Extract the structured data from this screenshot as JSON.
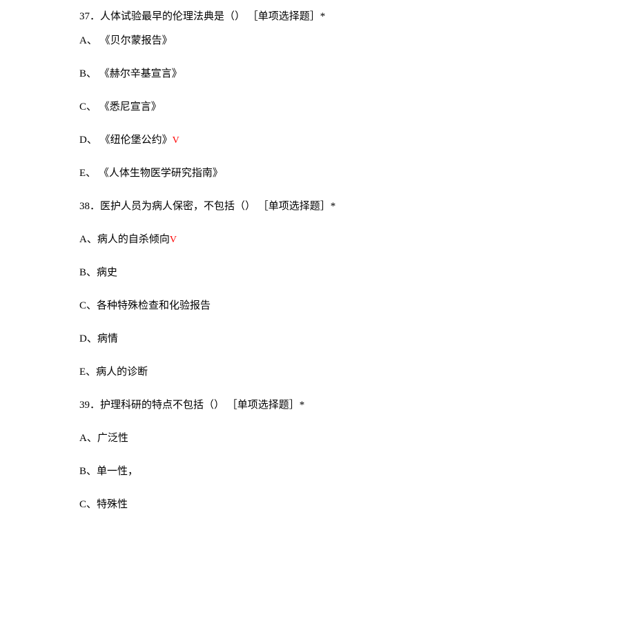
{
  "q37": {
    "stem": "37．人体试验最早的伦理法典是（） ［单项选择题］*",
    "options": {
      "A": "A、 《贝尔蒙报告》",
      "B": "B、 《赫尔辛基宣言》",
      "C": "C、 《悉尼宣言》",
      "D_text": "D、 《纽伦堡公约》",
      "D_mark": "V",
      "E": "E、 《人体生物医学研究指南》"
    }
  },
  "q38": {
    "stem": "38．医护人员为病人保密，不包括（） ［单项选择题］*",
    "options": {
      "A_text": "A、病人的自杀倾向",
      "A_mark": "V",
      "B": "B、病史",
      "C": "C、各种特殊检查和化验报告",
      "D": "D、病情",
      "E": "E、病人的诊断"
    }
  },
  "q39": {
    "stem": "39．护理科研的特点不包括（） ［单项选择题］*",
    "options": {
      "A": "A、广泛性",
      "B": "B、单一性，",
      "C": "C、特殊性"
    }
  }
}
